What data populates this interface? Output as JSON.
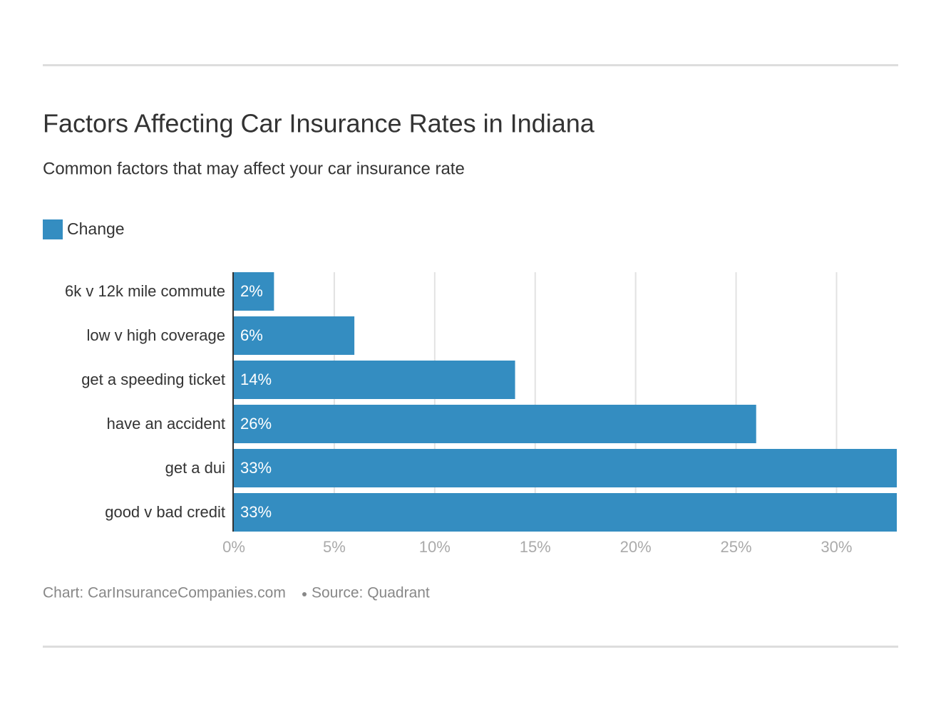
{
  "chart_data": {
    "type": "bar",
    "orientation": "horizontal",
    "title": "Factors Affecting Car Insurance Rates in Indiana",
    "subtitle": "Common factors that may affect your car insurance rate",
    "credit": "Chart: CarInsuranceCompanies.com",
    "source": "Source: Quadrant",
    "categories": [
      "6k v 12k mile commute",
      "low v high coverage",
      "get a speeding ticket",
      "have an accident",
      "get a dui",
      "good v bad credit"
    ],
    "series": [
      {
        "name": "Change",
        "color": "#348dc1",
        "values": [
          2,
          6,
          14,
          26,
          33,
          33
        ],
        "value_labels": [
          "2%",
          "6%",
          "14%",
          "26%",
          "33%",
          "33%"
        ]
      }
    ],
    "xlim": [
      0,
      33
    ],
    "xticks": [
      {
        "value": 0,
        "label": "0%"
      },
      {
        "value": 5,
        "label": "5%"
      },
      {
        "value": 10,
        "label": "10%"
      },
      {
        "value": 15,
        "label": "15%"
      },
      {
        "value": 20,
        "label": "20%"
      },
      {
        "value": 25,
        "label": "25%"
      },
      {
        "value": 30,
        "label": "30%"
      }
    ],
    "grid": true,
    "legend": "top-left"
  }
}
